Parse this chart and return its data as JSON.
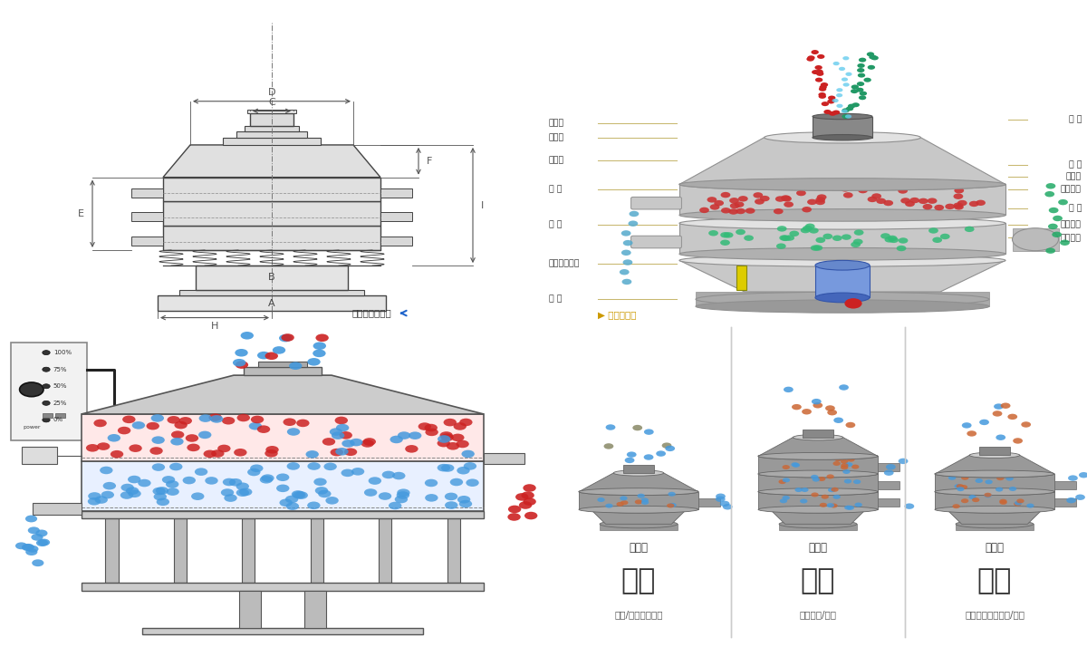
{
  "bg_color": "#ffffff",
  "lc": "#444444",
  "dc": "#555555",
  "lbl": "#333333",
  "cc": "#c8b870",
  "left_labels": [
    [
      0.62,
      "进料口"
    ],
    [
      0.575,
      "防尘盖"
    ],
    [
      0.505,
      "出料口"
    ],
    [
      0.415,
      "束 环"
    ],
    [
      0.305,
      "弹 簧"
    ],
    [
      0.185,
      "运输固定螺栓"
    ],
    [
      0.075,
      "机 座"
    ]
  ],
  "right_labels": [
    [
      0.63,
      "筛 网"
    ],
    [
      0.49,
      "网 架"
    ],
    [
      0.455,
      "加重块"
    ],
    [
      0.415,
      "上部重锤"
    ],
    [
      0.355,
      "筛 盘"
    ],
    [
      0.305,
      "振动电机"
    ],
    [
      0.265,
      "下部重锤"
    ]
  ],
  "label_waiguan": "外形尺寸示意图",
  "label_jiegou": "结构示意图",
  "title1": "分级",
  "title2": "过滤",
  "title3": "除杂",
  "sub1": "颗粒/粉末准确分级",
  "sub2": "去除异物/结块",
  "sub3": "去除液体中的颗粒/异物",
  "layer1": "单层式",
  "layer2": "三层式",
  "layer3": "双层式",
  "power_labels": [
    "100%",
    "75%",
    "50%",
    "25%",
    "0%"
  ]
}
